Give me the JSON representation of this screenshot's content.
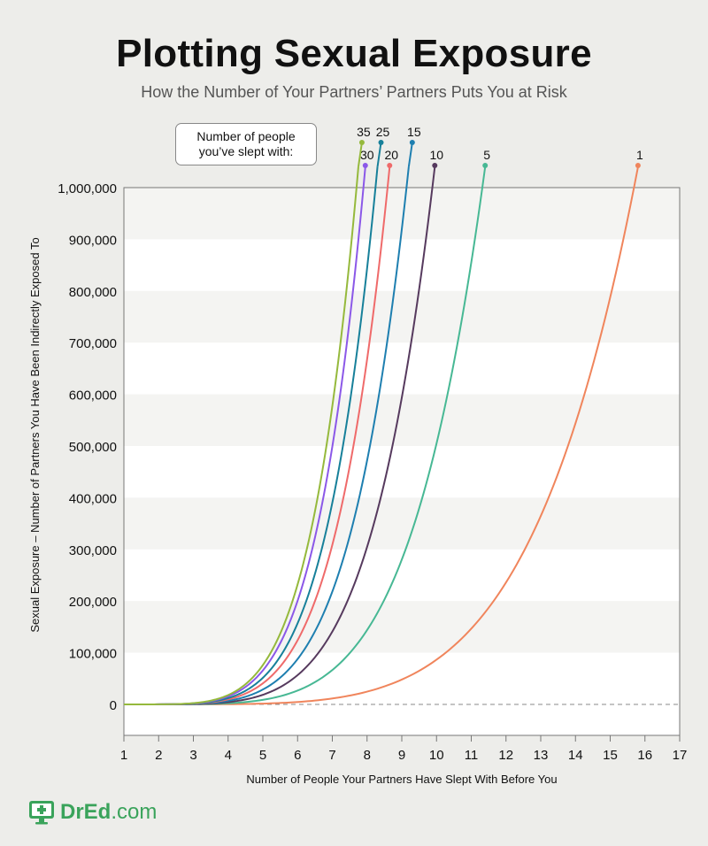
{
  "title": "Plotting Sexual Exposure",
  "subtitle": "How the Number of Your Partners’ Partners Puts You at Risk",
  "legend_box": {
    "line1": "Number of people",
    "line2": "you’ve slept with:"
  },
  "logo": {
    "name": "DrEd",
    "suffix": ".com",
    "icon": "medical-monitor-icon",
    "color": "#3aa35b"
  },
  "chart_data": {
    "type": "line",
    "title": "Plotting Sexual Exposure",
    "subtitle": "How the Number of Your Partners’ Partners Puts You at Risk",
    "xlabel": "Number of People Your Partners Have Slept With Before You",
    "ylabel": "Sexual Exposure – Number of Partners You Have Been Indirectly Exposed To",
    "xlim": [
      1,
      17
    ],
    "ylim": [
      -60000,
      1000000
    ],
    "x_ticks": [
      1,
      2,
      3,
      4,
      5,
      6,
      7,
      8,
      9,
      10,
      11,
      12,
      13,
      14,
      15,
      16,
      17
    ],
    "y_ticks": [
      0,
      100000,
      200000,
      300000,
      400000,
      500000,
      600000,
      700000,
      800000,
      900000,
      1000000
    ],
    "y_tick_labels": [
      "0",
      "100,000",
      "200,000",
      "300,000",
      "400,000",
      "500,000",
      "600,000",
      "700,000",
      "800,000",
      "900,000",
      "1,000,000"
    ],
    "grid": "horizontal bands",
    "zero_line": "dashed",
    "series": [
      {
        "name": "1",
        "color": "#f0855c",
        "x_end": 15.8,
        "exponent": 5
      },
      {
        "name": "5",
        "color": "#47b894",
        "x_end": 11.4,
        "exponent": 5
      },
      {
        "name": "10",
        "color": "#563a5e",
        "x_end": 9.95,
        "exponent": 5
      },
      {
        "name": "15",
        "color": "#1e7fb0",
        "x_end": 9.2,
        "exponent": 5
      },
      {
        "name": "20",
        "color": "#ef6a6a",
        "x_end": 8.65,
        "exponent": 5
      },
      {
        "name": "25",
        "color": "#17809a",
        "x_end": 8.3,
        "exponent": 5
      },
      {
        "name": "30",
        "color": "#8b58e8",
        "x_end": 7.95,
        "exponent": 5
      },
      {
        "name": "35",
        "color": "#95b93c",
        "x_end": 7.75,
        "exponent": 5
      }
    ]
  }
}
